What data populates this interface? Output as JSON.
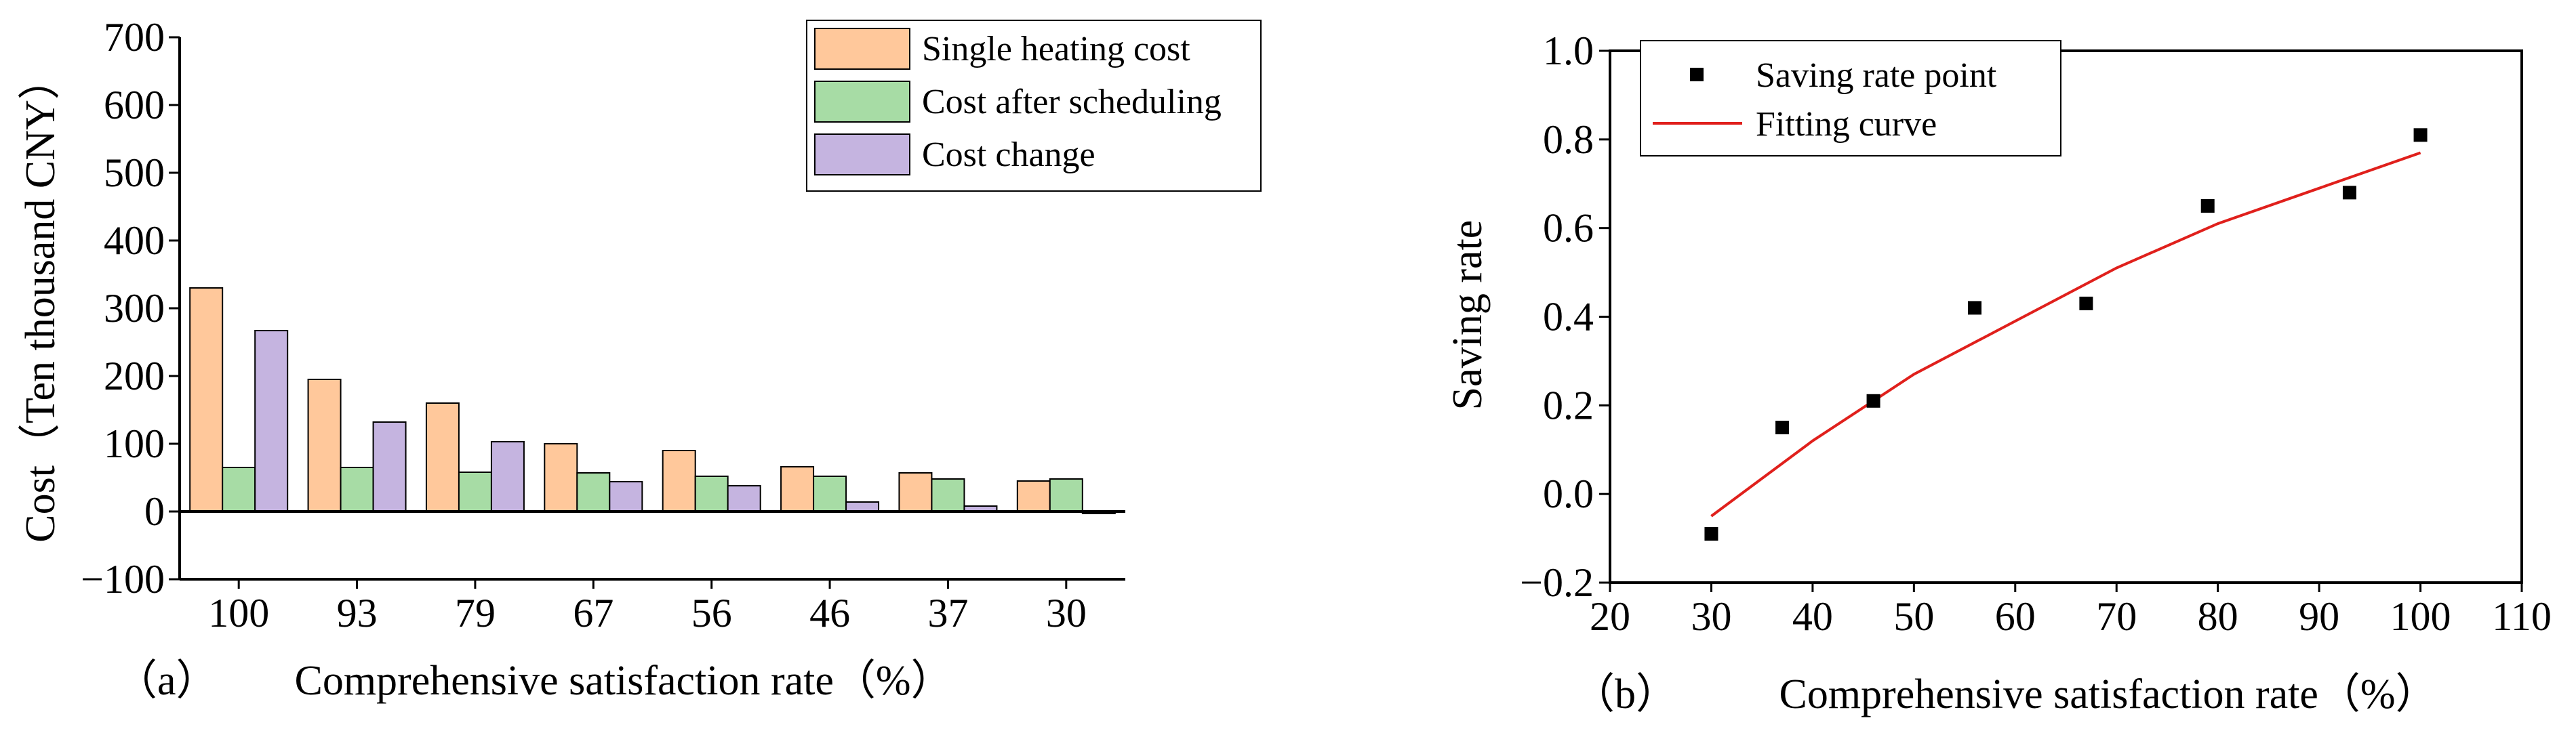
{
  "colors": {
    "single_heating": "#FFC89B",
    "after_scheduling": "#A7DCA5",
    "cost_change": "#C5B4E0",
    "fit_curve": "#E0201C",
    "point": "#000000",
    "axis": "#000000"
  },
  "chart_data": [
    {
      "panel_label": "（a）",
      "type": "bar",
      "title": "",
      "xlabel": "Comprehensive satisfaction rate（%）",
      "ylabel": "Cost（Ten thousand CNY）",
      "categories": [
        "100",
        "93",
        "79",
        "67",
        "56",
        "46",
        "37",
        "30"
      ],
      "ylim": [
        -100,
        700
      ],
      "yticks": [
        -100,
        0,
        100,
        200,
        300,
        400,
        500,
        600,
        700
      ],
      "legend_position": "top-right",
      "grid": false,
      "series": [
        {
          "name": "Single heating cost",
          "color_key": "single_heating",
          "values": [
            330,
            195,
            160,
            100,
            90,
            66,
            57,
            45
          ]
        },
        {
          "name": "Cost after scheduling",
          "color_key": "after_scheduling",
          "values": [
            65,
            65,
            58,
            57,
            52,
            52,
            48,
            48
          ]
        },
        {
          "name": "Cost change",
          "color_key": "cost_change",
          "values": [
            267,
            132,
            103,
            44,
            38,
            14,
            8,
            -3
          ]
        }
      ]
    },
    {
      "panel_label": "（b）",
      "type": "scatter",
      "title": "",
      "xlabel": "Comprehensive satisfaction rate（%）",
      "ylabel": "Saving rate",
      "xlim": [
        20,
        110
      ],
      "ylim": [
        -0.2,
        1.0
      ],
      "xticks": [
        20,
        30,
        40,
        50,
        60,
        70,
        80,
        90,
        100,
        110
      ],
      "yticks": [
        -0.2,
        0.0,
        0.2,
        0.4,
        0.6,
        0.8,
        1.0
      ],
      "ytick_labels": [
        "−0.2",
        "0.0",
        "0.2",
        "0.4",
        "0.6",
        "0.8",
        "1.0"
      ],
      "legend_position": "top-left",
      "grid": false,
      "series": [
        {
          "name": "Saving rate point",
          "kind": "points",
          "color_key": "point",
          "x": [
            30,
            37,
            46,
            56,
            67,
            79,
            93,
            100
          ],
          "y": [
            -0.09,
            0.15,
            0.21,
            0.42,
            0.43,
            0.65,
            0.68,
            0.81
          ]
        },
        {
          "name": "Fitting curve",
          "kind": "line",
          "color_key": "fit_curve",
          "x": [
            30,
            40,
            50,
            60,
            70,
            80,
            90,
            100
          ],
          "y": [
            -0.05,
            0.12,
            0.27,
            0.39,
            0.51,
            0.61,
            0.69,
            0.77
          ]
        }
      ]
    }
  ]
}
